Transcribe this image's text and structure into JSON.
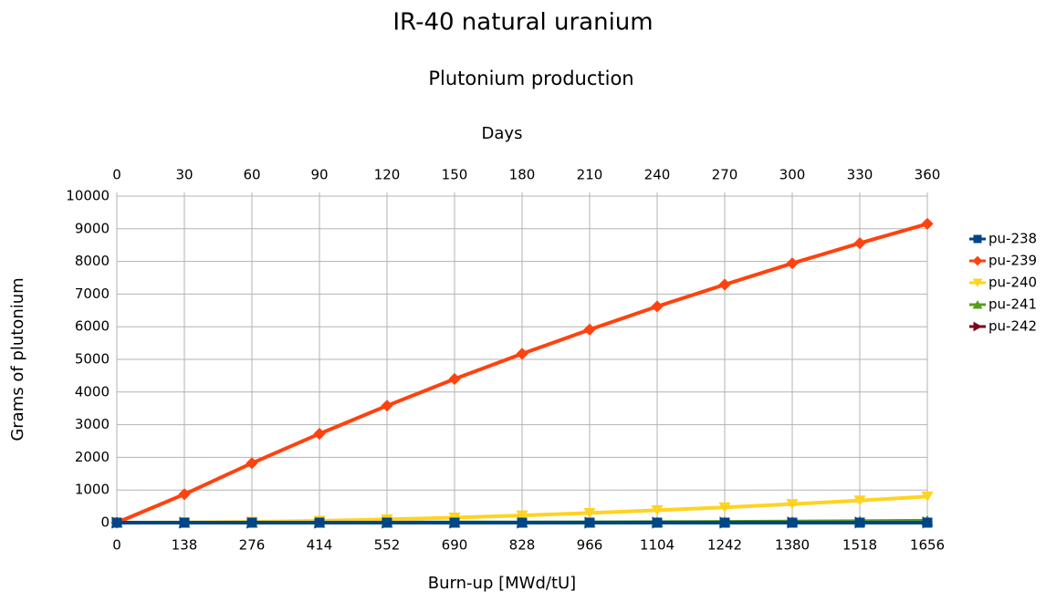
{
  "chart_data": {
    "type": "line",
    "title": "IR-40 natural uranium",
    "subtitle": "Plutonium production",
    "x_label": "Burn-up [MWd/tU]",
    "x2_label": "Days",
    "y_label": "Grams of plutonium",
    "x": [
      0,
      138,
      276,
      414,
      552,
      690,
      828,
      966,
      1104,
      1242,
      1380,
      1518,
      1656
    ],
    "xlim": [
      0,
      1656
    ],
    "xticks": [
      0,
      138,
      276,
      414,
      552,
      690,
      828,
      966,
      1104,
      1242,
      1380,
      1518,
      1656
    ],
    "x2lim": [
      0,
      360
    ],
    "x2ticks": [
      0,
      30,
      60,
      90,
      120,
      150,
      180,
      210,
      240,
      270,
      300,
      330,
      360
    ],
    "ylim": [
      0,
      10000
    ],
    "yticks": [
      0,
      1000,
      2000,
      3000,
      4000,
      5000,
      6000,
      7000,
      8000,
      9000,
      10000
    ],
    "grid": true,
    "legend": "right",
    "series": [
      {
        "name": "pu-238",
        "color": "#004586",
        "marker": "square",
        "values": [
          0,
          0,
          0,
          0,
          0,
          0,
          0,
          0,
          0,
          0,
          0,
          0,
          0
        ]
      },
      {
        "name": "pu-239",
        "color": "#ff420e",
        "marker": "diamond",
        "values": [
          0,
          870,
          1820,
          2720,
          3580,
          4400,
          5170,
          5910,
          6620,
          7290,
          7940,
          8560,
          9150
        ]
      },
      {
        "name": "pu-240",
        "color": "#ffd320",
        "marker": "triangle-down",
        "values": [
          0,
          5,
          25,
          55,
          100,
          155,
          220,
          295,
          380,
          470,
          570,
          680,
          800
        ]
      },
      {
        "name": "pu-241",
        "color": "#579d1c",
        "marker": "triangle-up",
        "values": [
          0,
          0,
          0,
          1,
          3,
          5,
          8,
          12,
          18,
          25,
          35,
          45,
          60
        ]
      },
      {
        "name": "pu-242",
        "color": "#7e0021",
        "marker": "triangle-right",
        "values": [
          0,
          0,
          0,
          0,
          0,
          0,
          0,
          0,
          1,
          1,
          2,
          3,
          4
        ]
      }
    ]
  }
}
